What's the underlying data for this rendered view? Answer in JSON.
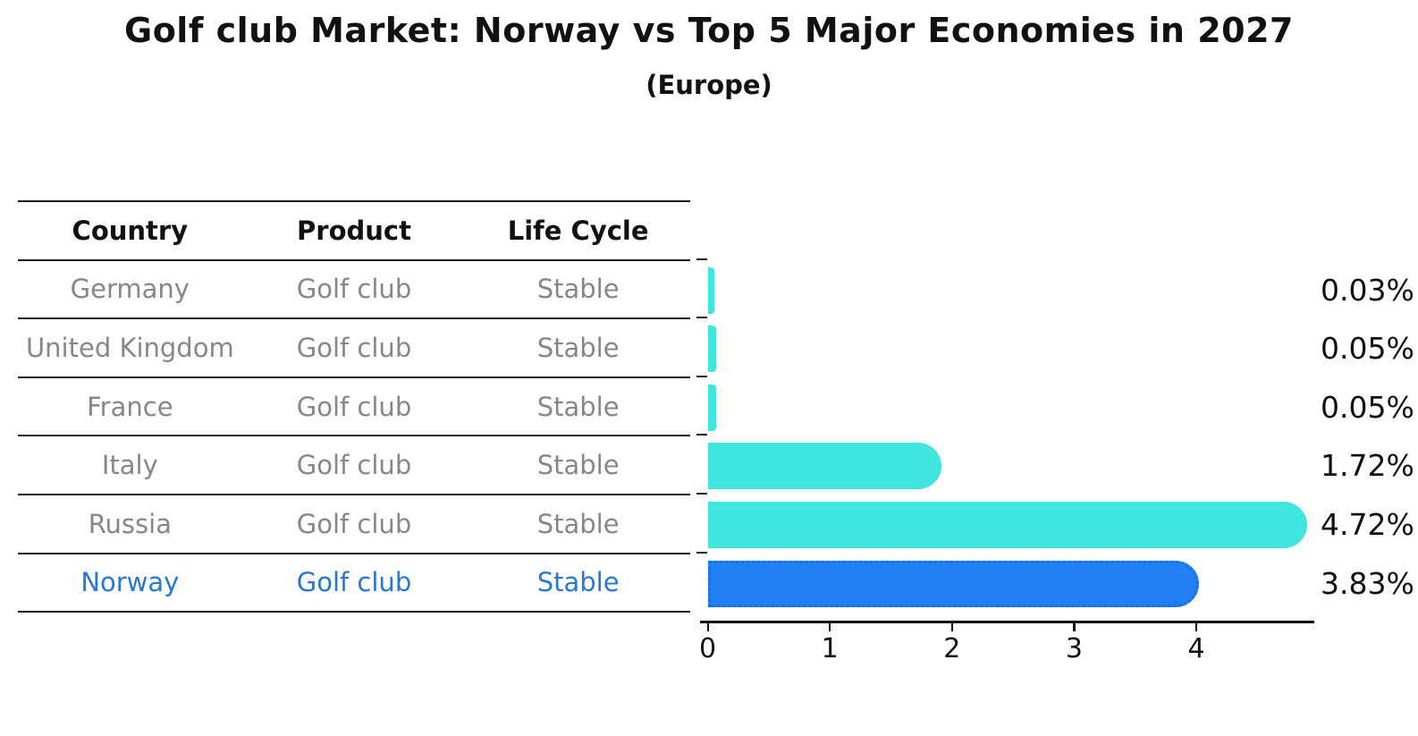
{
  "chart": {
    "title": "Golf club Market: Norway vs Top 5 Major Economies in 2027",
    "subtitle": "(Europe)"
  },
  "table": {
    "headers": [
      "Country",
      "Product",
      "Life Cycle"
    ],
    "rows": [
      {
        "country": "Germany",
        "product": "Golf club",
        "life_cycle": "Stable",
        "highlighted": false
      },
      {
        "country": "United Kingdom",
        "product": "Golf club",
        "life_cycle": "Stable",
        "highlighted": false
      },
      {
        "country": "France",
        "product": "Golf club",
        "life_cycle": "Stable",
        "highlighted": false
      },
      {
        "country": "Italy",
        "product": "Golf club",
        "life_cycle": "Stable",
        "highlighted": false
      },
      {
        "country": "Russia",
        "product": "Golf club",
        "life_cycle": "Stable",
        "highlighted": false
      },
      {
        "country": "Norway",
        "product": "Golf club",
        "life_cycle": "Stable",
        "highlighted": true
      }
    ]
  },
  "chart_data": {
    "type": "bar",
    "orientation": "horizontal",
    "title": "Golf club Market: Norway vs Top 5 Major Economies in 2027",
    "subtitle": "(Europe)",
    "categories": [
      "Germany",
      "United Kingdom",
      "France",
      "Italy",
      "Russia",
      "Norway"
    ],
    "values": [
      0.03,
      0.05,
      0.05,
      1.72,
      4.72,
      3.83
    ],
    "value_labels": [
      "0.03%",
      "0.05%",
      "0.05%",
      "1.72%",
      "4.72%",
      "3.83%"
    ],
    "xlabel": "",
    "ylabel": "",
    "xticks": [
      0,
      1,
      2,
      3,
      4
    ],
    "xlim": [
      0,
      4.96
    ],
    "grid": false,
    "legend": null,
    "highlight_category": "Norway",
    "highlight_style": "dotted-border"
  },
  "colors": {
    "bar_default": "#40E5DE",
    "bar_highlight": "#2181F3",
    "bar_highlight_border": "#1A6FE0",
    "highlight_text": "#2878CB",
    "body_text": "#878787",
    "header_text": "#111111",
    "line": "#1a1a1a"
  }
}
